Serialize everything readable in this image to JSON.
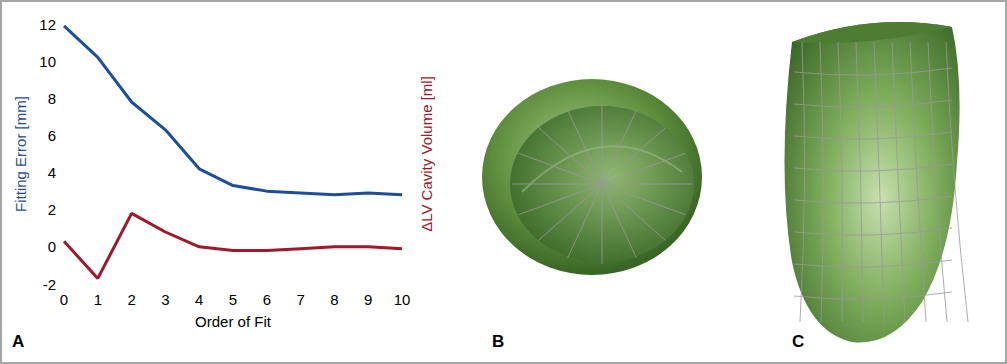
{
  "chart_data": {
    "type": "line",
    "x": [
      0,
      1,
      2,
      3,
      4,
      5,
      6,
      7,
      8,
      9,
      10
    ],
    "series": [
      {
        "name": "Fitting Error [mm]",
        "color": "#1f4e99",
        "values": [
          11.9,
          10.2,
          7.8,
          6.3,
          4.2,
          3.3,
          3.0,
          2.9,
          2.8,
          2.9,
          2.8
        ]
      },
      {
        "name": "ΔLV Cavity Volume [ml]",
        "color": "#a0182b",
        "values": [
          0.3,
          -1.7,
          1.8,
          0.8,
          0.0,
          -0.2,
          -0.2,
          -0.1,
          0.0,
          0.0,
          -0.1
        ]
      }
    ],
    "xlabel": "Order of Fit",
    "ylabel": "Fitting Error [mm]",
    "y2label": "ΔLV Cavity Volume [ml]",
    "xlim": [
      0,
      10
    ],
    "xticks": [
      0,
      1,
      2,
      3,
      4,
      5,
      6,
      7,
      8,
      9,
      10
    ],
    "ylim": [
      -2,
      12
    ],
    "yticks": [
      -2,
      0,
      2,
      4,
      6,
      8,
      10,
      12
    ],
    "grid": false
  },
  "panels": [
    {
      "label": "A"
    },
    {
      "label": "B"
    },
    {
      "label": "C"
    }
  ]
}
